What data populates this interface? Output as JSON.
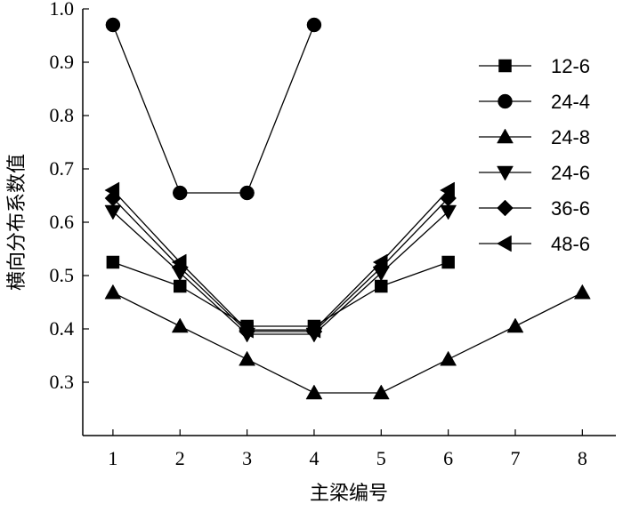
{
  "chart_data": {
    "type": "line",
    "title": "",
    "xlabel": "主梁编号",
    "ylabel": "横向分布系数值",
    "xlim": [
      0.55,
      8.5
    ],
    "ylim": [
      0.2,
      1.0
    ],
    "x_ticks": [
      1,
      2,
      3,
      4,
      5,
      6,
      7,
      8
    ],
    "y_ticks": [
      0.3,
      0.4,
      0.5,
      0.6,
      0.7,
      0.8,
      0.9,
      1.0
    ],
    "y_tick_labels": [
      "0.3",
      "0.4",
      "0.5",
      "0.6",
      "0.7",
      "0.8",
      "0.9",
      "1.0"
    ],
    "grid": false,
    "legend_position": "right",
    "series": [
      {
        "name": "12-6",
        "marker": "square",
        "x": [
          1,
          2,
          3,
          4,
          5,
          6
        ],
        "values": [
          0.525,
          0.48,
          0.405,
          0.405,
          0.48,
          0.525
        ]
      },
      {
        "name": "24-4",
        "marker": "circle",
        "x": [
          1,
          2,
          3,
          4
        ],
        "values": [
          0.97,
          0.655,
          0.655,
          0.97
        ]
      },
      {
        "name": "24-8",
        "marker": "triangle-up",
        "x": [
          1,
          2,
          3,
          4,
          5,
          6,
          7,
          8
        ],
        "values": [
          0.468,
          0.405,
          0.343,
          0.28,
          0.28,
          0.343,
          0.405,
          0.468
        ]
      },
      {
        "name": "24-6",
        "marker": "triangle-down",
        "x": [
          1,
          2,
          3,
          4,
          5,
          6
        ],
        "values": [
          0.62,
          0.505,
          0.39,
          0.39,
          0.505,
          0.62
        ]
      },
      {
        "name": "36-6",
        "marker": "diamond",
        "x": [
          1,
          2,
          3,
          4,
          5,
          6
        ],
        "values": [
          0.645,
          0.515,
          0.395,
          0.395,
          0.515,
          0.645
        ]
      },
      {
        "name": "48-6",
        "marker": "triangle-left",
        "x": [
          1,
          2,
          3,
          4,
          5,
          6
        ],
        "values": [
          0.66,
          0.525,
          0.398,
          0.398,
          0.525,
          0.66
        ]
      }
    ]
  }
}
